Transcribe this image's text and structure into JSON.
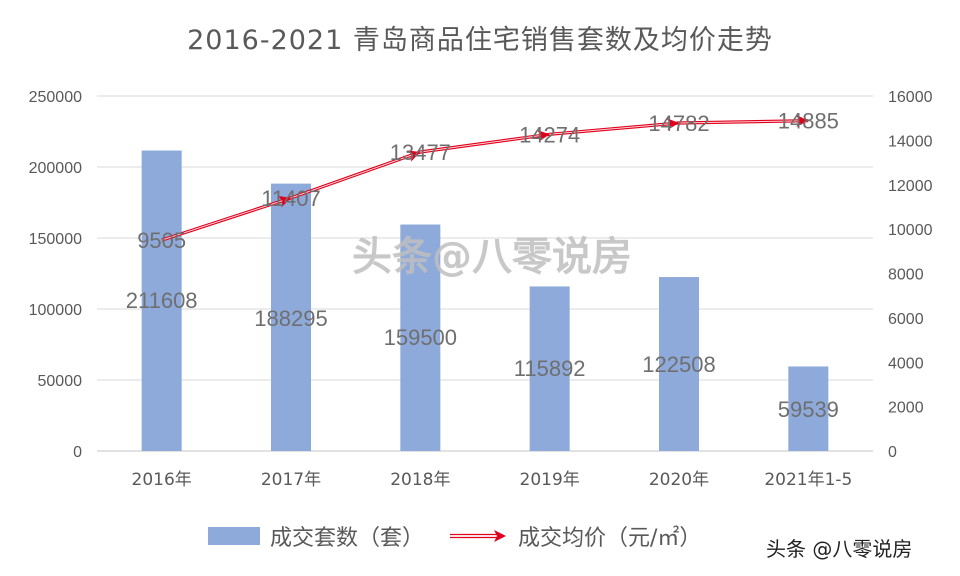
{
  "title": "2016-2021 青岛商品住宅销售套数及均价走势",
  "watermark": "头条@八零说房",
  "credit": "头条 @八零说房",
  "legend": {
    "bar_label": "成交套数（套）",
    "line_label": "成交均价（元/㎡）"
  },
  "colors": {
    "bar": "#8eaadb",
    "line": "#e0001b",
    "grid": "#d9d9d9",
    "text": "#595959"
  },
  "chart_data": {
    "type": "bar+line",
    "title": "2016-2021 青岛商品住宅销售套数及均价走势",
    "categories": [
      "2016年",
      "2017年",
      "2018年",
      "2019年",
      "2020年",
      "2021年1-5"
    ],
    "series": [
      {
        "name": "成交套数（套）",
        "type": "bar",
        "axis": "left",
        "values": [
          211608,
          188295,
          159500,
          115892,
          122508,
          59539
        ]
      },
      {
        "name": "成交均价（元/㎡）",
        "type": "line",
        "axis": "right",
        "values": [
          9505,
          11407,
          13477,
          14274,
          14782,
          14885
        ]
      }
    ],
    "y_left": {
      "ylim": [
        0,
        250000
      ],
      "ticks": [
        0,
        50000,
        100000,
        150000,
        200000,
        250000
      ]
    },
    "y_right": {
      "ylim": [
        0,
        16000
      ],
      "ticks": [
        0,
        2000,
        4000,
        6000,
        8000,
        10000,
        12000,
        14000,
        16000
      ]
    },
    "xlabel": "",
    "ylabel": "",
    "grid": true,
    "legend_position": "bottom"
  }
}
